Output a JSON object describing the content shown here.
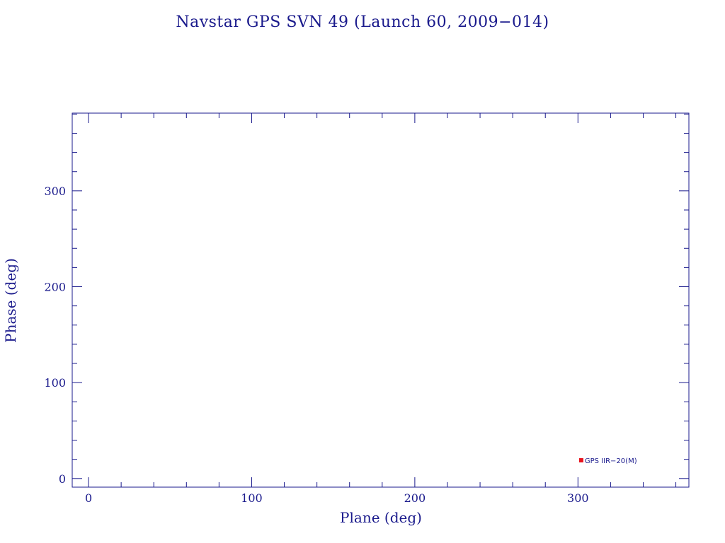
{
  "chart_data": {
    "type": "scatter",
    "title": "Navstar GPS SVN 49 (Launch 60, 2009−014)",
    "xlabel": "Plane (deg)",
    "ylabel": "Phase (deg)",
    "xlim": [
      -10,
      368
    ],
    "ylim": [
      -9,
      381
    ],
    "xticks": [
      0,
      100,
      200,
      300
    ],
    "yticks": [
      0,
      100,
      200,
      300
    ],
    "x_minor_step": 20,
    "y_minor_step": 20,
    "grid": false,
    "points": [
      {
        "x": 302,
        "y": 19,
        "label": "GPS IIR−20(M)",
        "color": "#e8141e"
      }
    ]
  }
}
